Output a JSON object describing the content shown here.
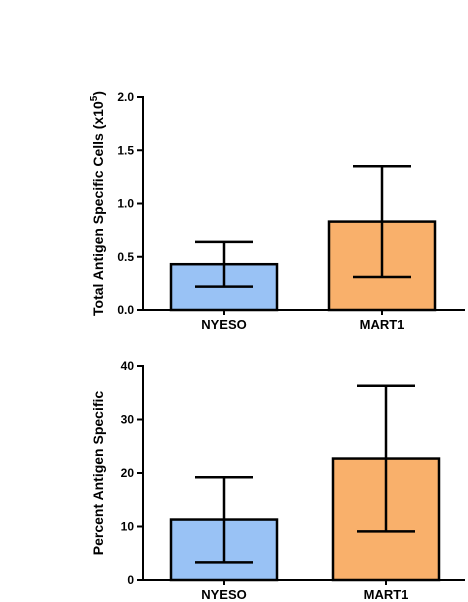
{
  "chart_data": [
    {
      "type": "bar",
      "categories": [
        "NYESO",
        "MART1"
      ],
      "values": [
        0.43,
        0.83
      ],
      "error_low": [
        0.22,
        0.31
      ],
      "error_high": [
        0.64,
        1.35
      ],
      "ylabel": "Total  Antigen Specific Cells (x10",
      "ylabel_exponent": "5",
      "ylabel_close": ")",
      "ylim": [
        0,
        2.0
      ],
      "yticks": [
        "0.0",
        "0.5",
        "1.0",
        "1.5",
        "2.0"
      ],
      "colors": [
        "#99c2f5",
        "#f9b06b"
      ]
    },
    {
      "type": "bar",
      "categories": [
        "NYESO",
        "MART1"
      ],
      "values": [
        11.3,
        22.7
      ],
      "error_low": [
        3.3,
        9.1
      ],
      "error_high": [
        19.2,
        36.3
      ],
      "ylabel": "Percent Antigen Specific",
      "ylim": [
        0,
        40
      ],
      "yticks": [
        "0",
        "10",
        "20",
        "30",
        "40"
      ],
      "colors": [
        "#99c2f5",
        "#f9b06b"
      ]
    }
  ]
}
